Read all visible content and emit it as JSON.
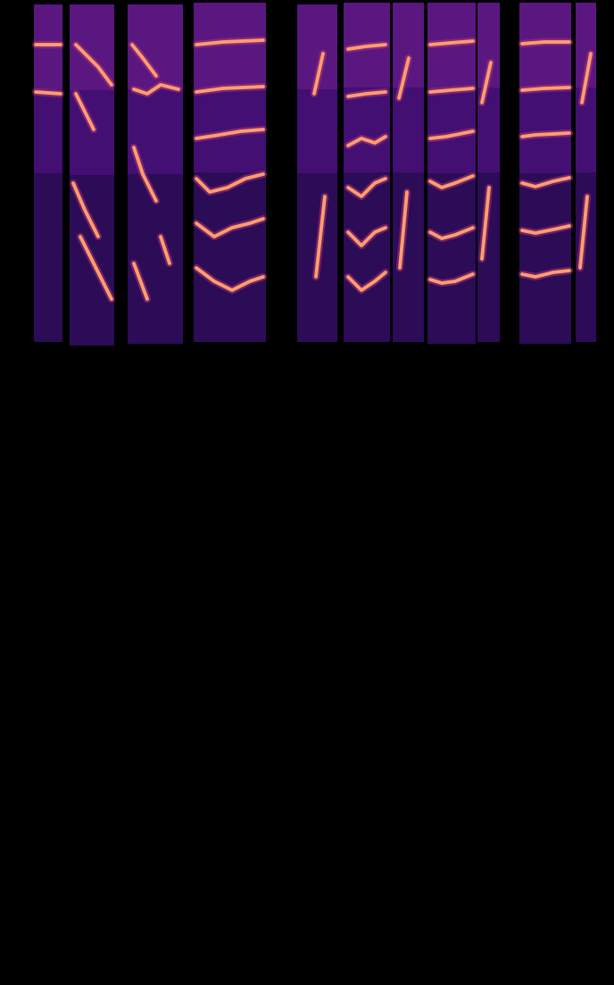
{
  "chart_data": {
    "type": "spectrogram",
    "xlim": [
      0,
      688
    ],
    "ylim": [
      0,
      395
    ],
    "tick_labels": false,
    "color": "#fb9e6c",
    "segments": [
      {
        "x": [
          38,
          70
        ],
        "y": [
          12,
          390
        ]
      },
      {
        "x": [
          78,
          128
        ],
        "y": [
          8,
          390
        ]
      },
      {
        "x": [
          143,
          205
        ],
        "y": [
          10,
          390
        ]
      },
      {
        "x": [
          217,
          298
        ],
        "y": [
          12,
          392
        ]
      },
      {
        "x": [
          333,
          378
        ],
        "y": [
          12,
          390
        ]
      },
      {
        "x": [
          385,
          437
        ],
        "y": [
          12,
          392
        ]
      },
      {
        "x": [
          440,
          475
        ],
        "y": [
          12,
          392
        ]
      },
      {
        "x": [
          479,
          533
        ],
        "y": [
          10,
          392
        ]
      },
      {
        "x": [
          535,
          560
        ],
        "y": [
          12,
          392
        ]
      },
      {
        "x": [
          582,
          640
        ],
        "y": [
          10,
          392
        ]
      },
      {
        "x": [
          645,
          668
        ],
        "y": [
          12,
          392
        ]
      }
    ],
    "traces": [
      {
        "x": [
          40,
          68
        ],
        "y": [
          345,
          345
        ]
      },
      {
        "x": [
          40,
          68
        ],
        "y": [
          292,
          290
        ]
      },
      {
        "x": [
          85,
          95,
          110,
          125
        ],
        "y": [
          345,
          335,
          320,
          300
        ]
      },
      {
        "x": [
          85,
          95,
          105
        ],
        "y": [
          290,
          270,
          250
        ]
      },
      {
        "x": [
          82,
          95,
          110
        ],
        "y": [
          190,
          160,
          130
        ]
      },
      {
        "x": [
          90,
          110,
          125
        ],
        "y": [
          130,
          90,
          60
        ]
      },
      {
        "x": [
          148,
          160,
          175
        ],
        "y": [
          345,
          330,
          310
        ]
      },
      {
        "x": [
          150,
          165,
          180,
          200
        ],
        "y": [
          295,
          290,
          300,
          295
        ]
      },
      {
        "x": [
          150,
          160,
          175
        ],
        "y": [
          230,
          200,
          170
        ]
      },
      {
        "x": [
          180,
          190
        ],
        "y": [
          130,
          100
        ]
      },
      {
        "x": [
          150,
          165
        ],
        "y": [
          100,
          60
        ]
      },
      {
        "x": [
          220,
          250,
          295
        ],
        "y": [
          345,
          348,
          350
        ]
      },
      {
        "x": [
          220,
          250,
          295
        ],
        "y": [
          292,
          296,
          298
        ]
      },
      {
        "x": [
          220,
          240,
          270,
          295
        ],
        "y": [
          240,
          243,
          248,
          250
        ]
      },
      {
        "x": [
          220,
          235,
          255,
          275,
          295
        ],
        "y": [
          195,
          180,
          185,
          195,
          200
        ]
      },
      {
        "x": [
          220,
          240,
          260,
          280,
          295
        ],
        "y": [
          145,
          130,
          140,
          145,
          150
        ]
      },
      {
        "x": [
          220,
          240,
          260,
          280,
          295
        ],
        "y": [
          95,
          80,
          70,
          80,
          85
        ]
      },
      {
        "x": [
          352,
          362
        ],
        "y": [
          290,
          335
        ]
      },
      {
        "x": [
          354,
          364
        ],
        "y": [
          85,
          175
        ]
      },
      {
        "x": [
          390,
          410,
          432
        ],
        "y": [
          340,
          343,
          345
        ]
      },
      {
        "x": [
          390,
          410,
          432
        ],
        "y": [
          287,
          290,
          292
        ]
      },
      {
        "x": [
          390,
          405,
          420,
          432
        ],
        "y": [
          232,
          240,
          235,
          242
        ]
      },
      {
        "x": [
          390,
          405,
          420,
          432
        ],
        "y": [
          185,
          175,
          190,
          195
        ]
      },
      {
        "x": [
          390,
          405,
          420,
          432
        ],
        "y": [
          135,
          120,
          135,
          140
        ]
      },
      {
        "x": [
          390,
          405,
          420,
          432
        ],
        "y": [
          85,
          70,
          80,
          90
        ]
      },
      {
        "x": [
          447,
          458
        ],
        "y": [
          285,
          330
        ]
      },
      {
        "x": [
          448,
          456
        ],
        "y": [
          95,
          180
        ]
      },
      {
        "x": [
          482,
          505,
          530
        ],
        "y": [
          345,
          347,
          349
        ]
      },
      {
        "x": [
          482,
          505,
          530
        ],
        "y": [
          292,
          294,
          296
        ]
      },
      {
        "x": [
          482,
          500,
          515,
          530
        ],
        "y": [
          240,
          242,
          245,
          248
        ]
      },
      {
        "x": [
          482,
          495,
          510,
          530
        ],
        "y": [
          192,
          185,
          190,
          198
        ]
      },
      {
        "x": [
          482,
          495,
          510,
          530
        ],
        "y": [
          135,
          128,
          132,
          140
        ]
      },
      {
        "x": [
          482,
          495,
          510,
          530
        ],
        "y": [
          82,
          78,
          80,
          88
        ]
      },
      {
        "x": [
          540,
          550
        ],
        "y": [
          280,
          325
        ]
      },
      {
        "x": [
          540,
          548
        ],
        "y": [
          105,
          185
        ]
      },
      {
        "x": [
          585,
          610,
          638
        ],
        "y": [
          346,
          348,
          348
        ]
      },
      {
        "x": [
          585,
          610,
          638
        ],
        "y": [
          294,
          296,
          297
        ]
      },
      {
        "x": [
          585,
          600,
          620,
          638
        ],
        "y": [
          242,
          244,
          245,
          246
        ]
      },
      {
        "x": [
          585,
          600,
          620,
          638
        ],
        "y": [
          190,
          186,
          192,
          196
        ]
      },
      {
        "x": [
          585,
          600,
          620,
          638
        ],
        "y": [
          137,
          134,
          138,
          142
        ]
      },
      {
        "x": [
          585,
          600,
          620,
          638
        ],
        "y": [
          88,
          85,
          90,
          92
        ]
      },
      {
        "x": [
          652,
          662
        ],
        "y": [
          280,
          335
        ]
      },
      {
        "x": [
          650,
          658
        ],
        "y": [
          95,
          175
        ]
      }
    ]
  }
}
